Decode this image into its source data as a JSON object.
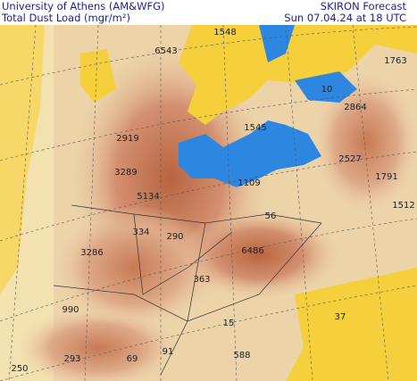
{
  "header": {
    "institution": "University of Athens (AM&WFG)",
    "product": "Total Dust Load (mgr/m²)",
    "model": "SKIRON Forecast",
    "valid_time": "Sun 07.04.24 at 18 UTC"
  },
  "map": {
    "labels": [
      "1548",
      "6543",
      "1763",
      "10",
      "2864",
      "2919",
      "1545",
      "2527",
      "3289",
      "1109",
      "1791",
      "5134",
      "56",
      "1512",
      "334",
      "290",
      "6486",
      "3286",
      "363",
      "990",
      "15",
      "37",
      "293",
      "250",
      "69",
      "91",
      "588"
    ]
  }
}
